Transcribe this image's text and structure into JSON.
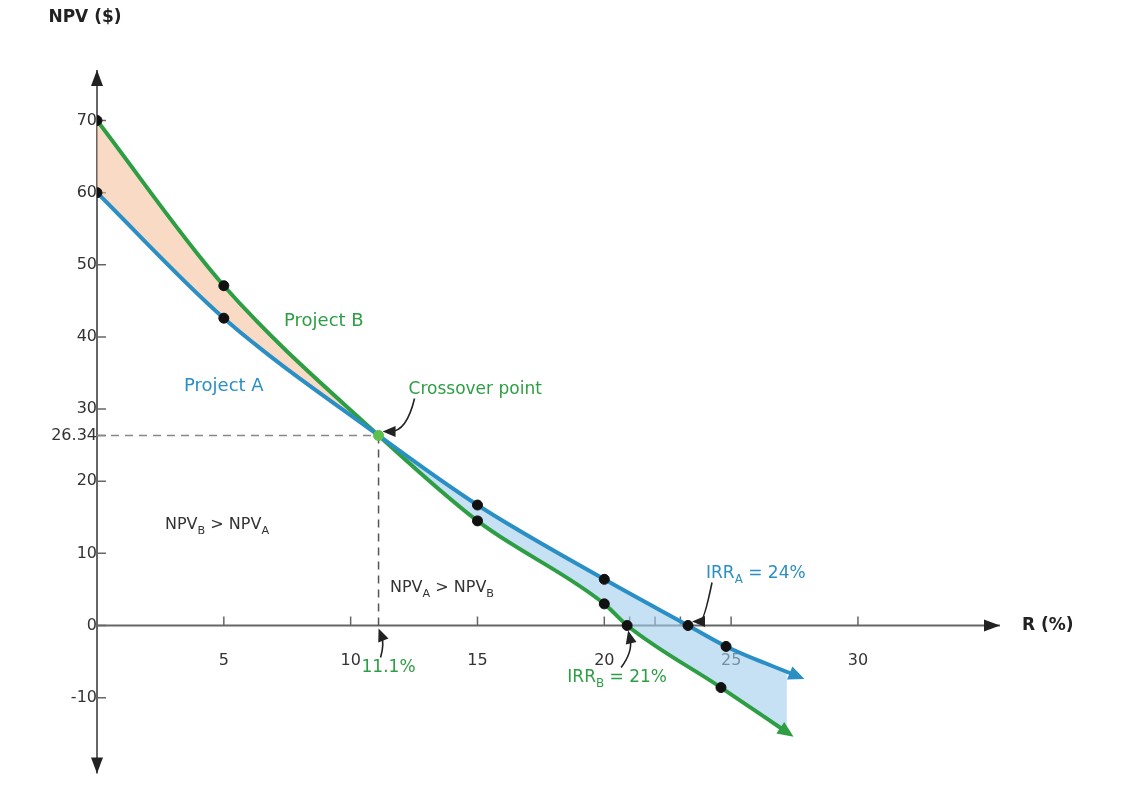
{
  "chart_data": {
    "type": "line",
    "xlabel": "R (%)",
    "ylabel": "NPV ($)",
    "xlim": [
      0,
      35.6
    ],
    "ylim": [
      -20.5,
      77
    ],
    "xticks": [
      5,
      10,
      15,
      20,
      {
        "value": 21,
        "label": null
      },
      {
        "value": 22,
        "label": null
      },
      {
        "value": 23,
        "label": null
      },
      25,
      30
    ],
    "yticks": [
      -10,
      0,
      10,
      20,
      {
        "value": 26.34,
        "label": "26.34"
      },
      30,
      40,
      50,
      60,
      70
    ],
    "grid": false,
    "legend": false,
    "marker": "none",
    "line_style": "solid",
    "series": [
      {
        "name": "Project A",
        "color": "#2a8fc4",
        "x": [
          0,
          5,
          11.1,
          15,
          20,
          23.3,
          24.8,
          27.6
        ],
        "values": [
          60,
          42.6,
          26.34,
          16.7,
          6.4,
          0,
          -2.9,
          -7.0
        ]
      },
      {
        "name": "Project B",
        "color": "#2e9e44",
        "x": [
          0,
          5,
          11.1,
          15,
          20,
          20.9,
          24.6,
          27.2
        ],
        "values": [
          70,
          47.1,
          26.34,
          14.5,
          3.0,
          0,
          -8.6,
          -14.8
        ],
        "lower": [
          60,
          42.6,
          26.34,
          14.5,
          3.0,
          0,
          -8.6,
          -14.8
        ],
        "upper": [
          70,
          47.1,
          26.34,
          16.7,
          6.4,
          4.7,
          -2.5,
          -6.4
        ]
      },
      {
        "type": "scatter",
        "marker": "circle",
        "color": "#111111",
        "x": [
          0,
          5,
          15,
          20,
          23.3,
          24.8
        ],
        "values": [
          60,
          42.6,
          16.7,
          6.4,
          0,
          -2.9
        ]
      },
      {
        "type": "scatter",
        "marker": "circle",
        "color": "#111111",
        "x": [
          0,
          5,
          15,
          20,
          20.9,
          24.6
        ],
        "values": [
          70,
          47.1,
          14.5,
          3.0,
          0,
          -8.6
        ]
      },
      {
        "type": "scatter",
        "marker": "circle",
        "color": "#5cc04a",
        "x": [
          11.1
        ],
        "values": [
          26.34
        ]
      }
    ],
    "ref_lines": [
      {
        "axis": "x",
        "value": 11.1,
        "label": "11.1%",
        "line_style": "dashed",
        "color": "#555555"
      },
      {
        "axis": "y",
        "value": 26.34,
        "line_style": "dashed",
        "color": "#888888"
      }
    ],
    "annotations": [
      {
        "text": "Crossover point",
        "x": 11.1,
        "y": 26.34
      },
      {
        "text": "IRR$_{A}$ = 24%",
        "x": 23.3,
        "y": 0
      },
      {
        "text": "IRR$_{B}$ = 21%",
        "x": 20.9,
        "y": 0
      },
      "NPV$_{B}$ > NPV$_{A}$",
      "NPV$_{A}$ > NPV$_{B}$"
    ]
  }
}
